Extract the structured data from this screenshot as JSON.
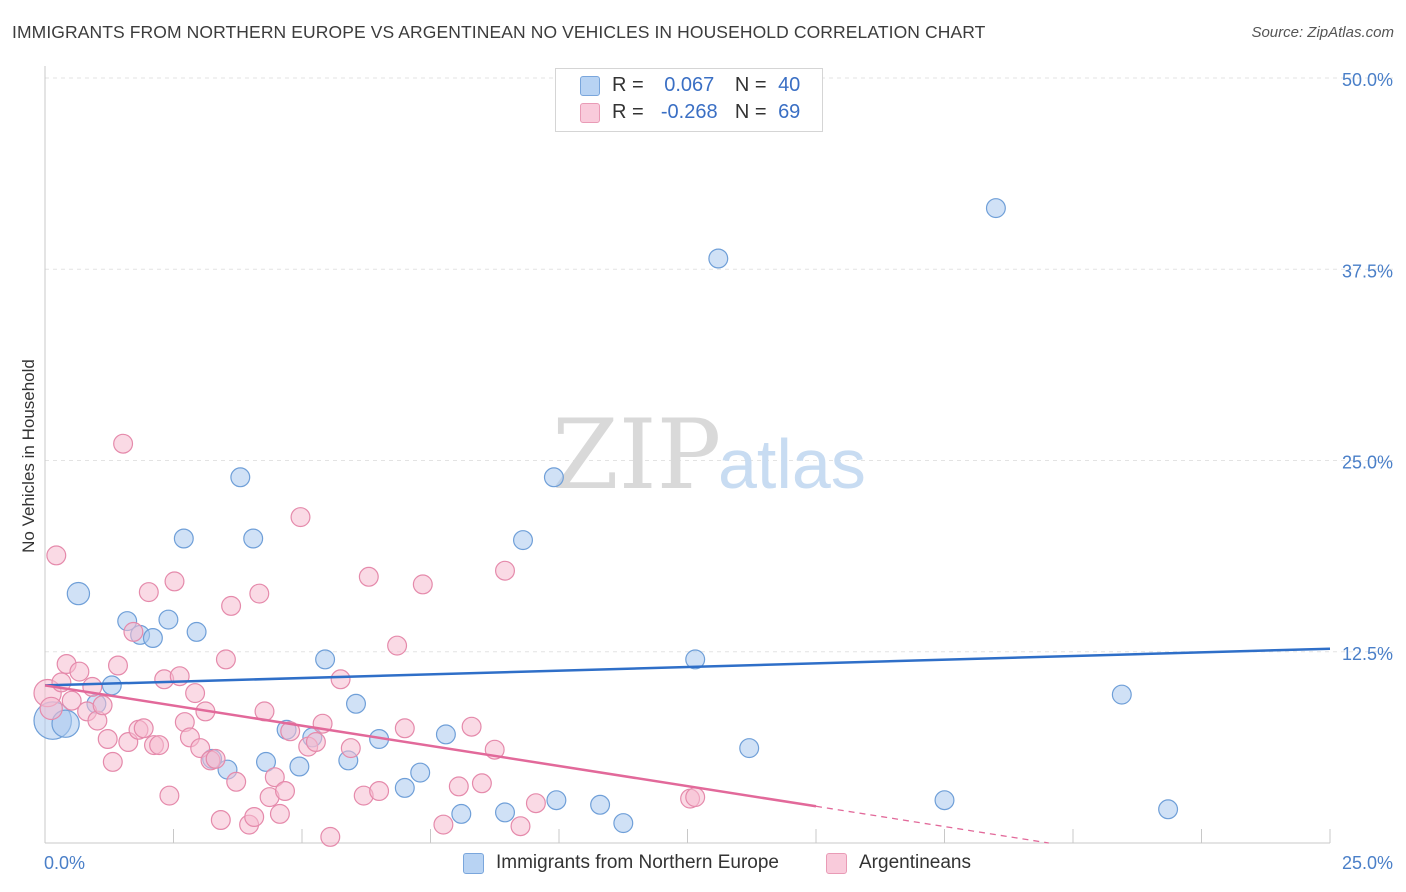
{
  "title": "IMMIGRANTS FROM NORTHERN EUROPE VS ARGENTINEAN NO VEHICLES IN HOUSEHOLD CORRELATION CHART",
  "source": "Source: ZipAtlas.com",
  "watermark": {
    "zip": "ZIP",
    "atlas": "atlas"
  },
  "colors": {
    "blue_fill": "#a9c8ee",
    "blue_stroke": "#6f9fd8",
    "blue_line": "#2f6fc8",
    "pink_fill": "#f5bcd0",
    "pink_stroke": "#e58aab",
    "pink_line": "#e2699a",
    "tick_text": "#4a7fc8",
    "grid": "#e3e3e3"
  },
  "legend": {
    "rows": [
      {
        "r_label": "R =",
        "r_value": "0.067",
        "n_label": "N =",
        "n_value": "40",
        "series": "blue"
      },
      {
        "r_label": "R =",
        "r_value": "-0.268",
        "n_label": "N =",
        "n_value": "69",
        "series": "pink"
      }
    ]
  },
  "chart_data": {
    "type": "scatter",
    "title": "IMMIGRANTS FROM NORTHERN EUROPE VS ARGENTINEAN NO VEHICLES IN HOUSEHOLD CORRELATION CHART",
    "xlabel": "",
    "ylabel": "No Vehicles in Household",
    "xlim": [
      0,
      25
    ],
    "ylim": [
      0,
      50
    ],
    "x_tick_labels": [
      "0.0%",
      "25.0%"
    ],
    "y_ticks": [
      12.5,
      25.0,
      37.5,
      50.0
    ],
    "y_tick_labels": [
      "12.5%",
      "25.0%",
      "37.5%",
      "50.0%"
    ],
    "grid": true,
    "legend_position": "top-center",
    "series": [
      {
        "name": "Immigrants from Northern Europe",
        "color": "blue",
        "R": 0.067,
        "N": 40,
        "trend": {
          "x": [
            0,
            25
          ],
          "y": [
            10.3,
            12.7
          ]
        },
        "points": [
          [
            0.15,
            8.0,
            2.2
          ],
          [
            0.4,
            7.8,
            1.6
          ],
          [
            0.65,
            16.3,
            1.3
          ],
          [
            1.0,
            9.1,
            1.1
          ],
          [
            1.3,
            10.3,
            1.1
          ],
          [
            1.6,
            14.5,
            1.1
          ],
          [
            1.85,
            13.6,
            1.1
          ],
          [
            2.1,
            13.4,
            1.1
          ],
          [
            2.4,
            14.6,
            1.1
          ],
          [
            2.7,
            19.9,
            1.1
          ],
          [
            2.95,
            13.8,
            1.1
          ],
          [
            3.25,
            5.5,
            1.1
          ],
          [
            3.55,
            4.8,
            1.1
          ],
          [
            3.8,
            23.9,
            1.1
          ],
          [
            4.05,
            19.9,
            1.1
          ],
          [
            4.3,
            5.3,
            1.1
          ],
          [
            4.7,
            7.4,
            1.1
          ],
          [
            4.95,
            5.0,
            1.1
          ],
          [
            5.2,
            6.9,
            1.1
          ],
          [
            5.45,
            12.0,
            1.1
          ],
          [
            5.9,
            5.4,
            1.1
          ],
          [
            6.05,
            9.1,
            1.1
          ],
          [
            6.5,
            6.8,
            1.1
          ],
          [
            7.0,
            3.6,
            1.1
          ],
          [
            7.3,
            4.6,
            1.1
          ],
          [
            7.8,
            7.1,
            1.1
          ],
          [
            8.1,
            1.9,
            1.1
          ],
          [
            8.95,
            2.0,
            1.1
          ],
          [
            9.3,
            19.8,
            1.1
          ],
          [
            9.9,
            23.9,
            1.1
          ],
          [
            9.95,
            2.8,
            1.1
          ],
          [
            10.8,
            2.5,
            1.1
          ],
          [
            11.25,
            1.3,
            1.1
          ],
          [
            12.65,
            12.0,
            1.1
          ],
          [
            13.1,
            38.2,
            1.1
          ],
          [
            13.7,
            6.2,
            1.1
          ],
          [
            17.5,
            2.8,
            1.1
          ],
          [
            18.5,
            41.5,
            1.1
          ],
          [
            20.95,
            9.7,
            1.1
          ],
          [
            21.85,
            2.2,
            1.1
          ]
        ]
      },
      {
        "name": "Argentineans",
        "color": "pink",
        "R": -0.268,
        "N": 69,
        "trend": {
          "x": [
            0,
            15
          ],
          "y": [
            10.3,
            2.4
          ]
        },
        "trend_dashed": {
          "x": [
            15,
            25
          ],
          "y": [
            2.4,
            -2.9
          ]
        },
        "points": [
          [
            0.05,
            9.8,
            1.6
          ],
          [
            0.12,
            8.8,
            1.3
          ],
          [
            0.22,
            18.8,
            1.1
          ],
          [
            0.32,
            10.5,
            1.1
          ],
          [
            0.42,
            11.7,
            1.1
          ],
          [
            0.52,
            9.3,
            1.1
          ],
          [
            0.67,
            11.2,
            1.1
          ],
          [
            0.82,
            8.6,
            1.1
          ],
          [
            0.92,
            10.2,
            1.1
          ],
          [
            1.02,
            8.0,
            1.1
          ],
          [
            1.12,
            9.0,
            1.1
          ],
          [
            1.22,
            6.8,
            1.1
          ],
          [
            1.32,
            5.3,
            1.1
          ],
          [
            1.42,
            11.6,
            1.1
          ],
          [
            1.52,
            26.1,
            1.1
          ],
          [
            1.62,
            6.6,
            1.1
          ],
          [
            1.72,
            13.8,
            1.1
          ],
          [
            1.82,
            7.4,
            1.1
          ],
          [
            1.92,
            7.5,
            1.1
          ],
          [
            2.02,
            16.4,
            1.1
          ],
          [
            2.12,
            6.4,
            1.1
          ],
          [
            2.22,
            6.4,
            1.1
          ],
          [
            2.32,
            10.7,
            1.1
          ],
          [
            2.42,
            3.1,
            1.1
          ],
          [
            2.52,
            17.1,
            1.1
          ],
          [
            2.62,
            10.9,
            1.1
          ],
          [
            2.72,
            7.9,
            1.1
          ],
          [
            2.82,
            6.9,
            1.1
          ],
          [
            2.92,
            9.8,
            1.1
          ],
          [
            3.02,
            6.2,
            1.1
          ],
          [
            3.12,
            8.6,
            1.1
          ],
          [
            3.22,
            5.4,
            1.1
          ],
          [
            3.32,
            5.5,
            1.1
          ],
          [
            3.42,
            1.5,
            1.1
          ],
          [
            3.52,
            12.0,
            1.1
          ],
          [
            3.62,
            15.5,
            1.1
          ],
          [
            3.72,
            4.0,
            1.1
          ],
          [
            3.97,
            1.2,
            1.1
          ],
          [
            4.07,
            1.7,
            1.1
          ],
          [
            4.17,
            16.3,
            1.1
          ],
          [
            4.27,
            8.6,
            1.1
          ],
          [
            4.37,
            3.0,
            1.1
          ],
          [
            4.47,
            4.3,
            1.1
          ],
          [
            4.57,
            1.9,
            1.1
          ],
          [
            4.67,
            3.4,
            1.1
          ],
          [
            4.77,
            7.3,
            1.1
          ],
          [
            4.97,
            21.3,
            1.1
          ],
          [
            5.12,
            6.3,
            1.1
          ],
          [
            5.27,
            6.6,
            1.1
          ],
          [
            5.4,
            7.8,
            1.1
          ],
          [
            5.55,
            0.4,
            1.1
          ],
          [
            5.75,
            10.7,
            1.1
          ],
          [
            5.95,
            6.2,
            1.1
          ],
          [
            6.2,
            3.1,
            1.1
          ],
          [
            6.3,
            17.4,
            1.1
          ],
          [
            6.5,
            3.4,
            1.1
          ],
          [
            6.85,
            12.9,
            1.1
          ],
          [
            7.0,
            7.5,
            1.1
          ],
          [
            7.35,
            16.9,
            1.1
          ],
          [
            7.75,
            1.2,
            1.1
          ],
          [
            8.05,
            3.7,
            1.1
          ],
          [
            8.3,
            7.6,
            1.1
          ],
          [
            8.5,
            3.9,
            1.1
          ],
          [
            8.75,
            6.1,
            1.1
          ],
          [
            8.95,
            17.8,
            1.1
          ],
          [
            9.25,
            1.1,
            1.1
          ],
          [
            9.55,
            2.6,
            1.1
          ],
          [
            12.55,
            2.9,
            1.1
          ],
          [
            12.65,
            3.0,
            1.1
          ]
        ]
      }
    ]
  },
  "bottom_legend": [
    {
      "label": "Immigrants from Northern Europe",
      "series": "blue"
    },
    {
      "label": "Argentineans",
      "series": "pink"
    }
  ]
}
